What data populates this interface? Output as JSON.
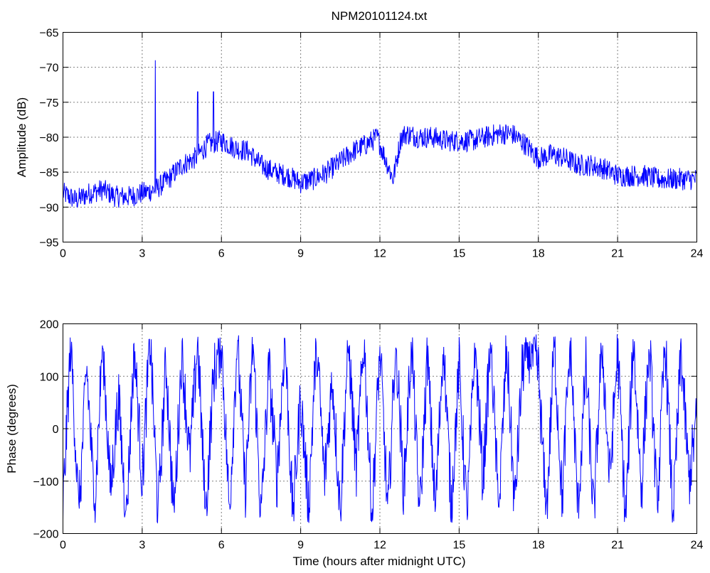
{
  "chart_data": [
    {
      "type": "line",
      "title": "NPM20101124.txt",
      "xlabel": "",
      "ylabel": "Amplitude (dB)",
      "xlim": [
        0,
        24
      ],
      "ylim": [
        -95,
        -65
      ],
      "xticks": [
        0,
        3,
        6,
        9,
        12,
        15,
        18,
        21,
        24
      ],
      "yticks": [
        -95,
        -90,
        -85,
        -80,
        -75,
        -70,
        -65
      ],
      "grid": true,
      "color": "#0000ff",
      "series": [
        {
          "x": [
            0,
            0.5,
            1,
            1.5,
            2,
            2.5,
            3,
            3.5,
            4,
            4.5,
            5,
            5.5,
            6,
            6.5,
            7,
            7.5,
            8,
            8.5,
            9,
            9.5,
            10,
            10.5,
            11,
            11.5,
            11.9,
            12.2,
            12.5,
            12.8,
            13,
            13.5,
            14,
            14.5,
            15,
            15.5,
            16,
            16.5,
            17,
            17.5,
            18,
            18.5,
            19,
            19.5,
            20,
            20.5,
            21,
            21.5,
            22,
            22.5,
            23,
            23.5,
            24
          ],
          "values": [
            -88,
            -89,
            -88,
            -87.5,
            -88.5,
            -88.5,
            -88,
            -87.5,
            -86,
            -84,
            -83,
            -81,
            -80.5,
            -81.5,
            -82,
            -84,
            -85,
            -85.5,
            -86.5,
            -86,
            -85,
            -83.5,
            -82,
            -81,
            -80,
            -83,
            -86,
            -80,
            -79.5,
            -80,
            -80,
            -80.5,
            -80.5,
            -80.5,
            -80,
            -79.5,
            -79.5,
            -81,
            -83,
            -82.5,
            -83,
            -84,
            -84,
            -84.5,
            -85.5,
            -85.5,
            -85.5,
            -86,
            -86,
            -86,
            -86
          ],
          "spikes": [
            {
              "x": 3.5,
              "y": -69
            },
            {
              "x": 5.1,
              "y": -73.5
            },
            {
              "x": 5.7,
              "y": -73.5
            }
          ]
        }
      ]
    },
    {
      "type": "line",
      "title": "",
      "xlabel": "Time (hours after midnight UTC)",
      "ylabel": "Phase (degrees)",
      "xlim": [
        0,
        24
      ],
      "ylim": [
        -200,
        200
      ],
      "xticks": [
        0,
        3,
        6,
        9,
        12,
        15,
        18,
        21,
        24
      ],
      "yticks": [
        -200,
        -100,
        0,
        100,
        200
      ],
      "grid": true,
      "color": "#0000ff",
      "series": [
        {
          "x": [
            0,
            0.3,
            0.6,
            0.9,
            1.2,
            1.5,
            1.8,
            2.1,
            2.4,
            2.7,
            3.0,
            3.3,
            3.6,
            3.9,
            4.2,
            4.5,
            4.8,
            5.1,
            5.4,
            5.7,
            6.0,
            6.3,
            6.6,
            6.9,
            7.2,
            7.5,
            7.8,
            8.1,
            8.4,
            8.7,
            9.0,
            9.3,
            9.6,
            9.9,
            10.2,
            10.5,
            10.8,
            11.1,
            11.4,
            11.7,
            12.0,
            12.3,
            12.6,
            12.9,
            13.2,
            13.5,
            13.8,
            14.1,
            14.4,
            14.7,
            15.0,
            15.3,
            15.6,
            15.9,
            16.2,
            16.5,
            16.8,
            17.1,
            17.4,
            17.7,
            18.0,
            18.3,
            18.6,
            18.9,
            19.2,
            19.5,
            19.8,
            20.1,
            20.4,
            20.7,
            21.0,
            21.3,
            21.6,
            21.9,
            22.2,
            22.5,
            22.8,
            23.1,
            23.4,
            23.7,
            24.0
          ],
          "values": [
            -150,
            170,
            -170,
            120,
            -160,
            175,
            -120,
            60,
            -175,
            160,
            -100,
            175,
            -170,
            130,
            -175,
            150,
            -60,
            170,
            -170,
            100,
            170,
            -160,
            175,
            -120,
            165,
            -175,
            120,
            -100,
            175,
            -170,
            60,
            -150,
            175,
            -100,
            100,
            -160,
            175,
            -80,
            170,
            -175,
            160,
            -170,
            175,
            -120,
            170,
            -175,
            140,
            -160,
            175,
            -150,
            120,
            -175,
            170,
            -100,
            175,
            -170,
            160,
            -150,
            120,
            150,
            110,
            -175,
            170,
            -140,
            175,
            -160,
            120,
            -170,
            175,
            -100,
            150,
            -175,
            170,
            -120,
            175,
            -160,
            170,
            -175,
            150,
            -100,
            20
          ]
        }
      ]
    }
  ]
}
